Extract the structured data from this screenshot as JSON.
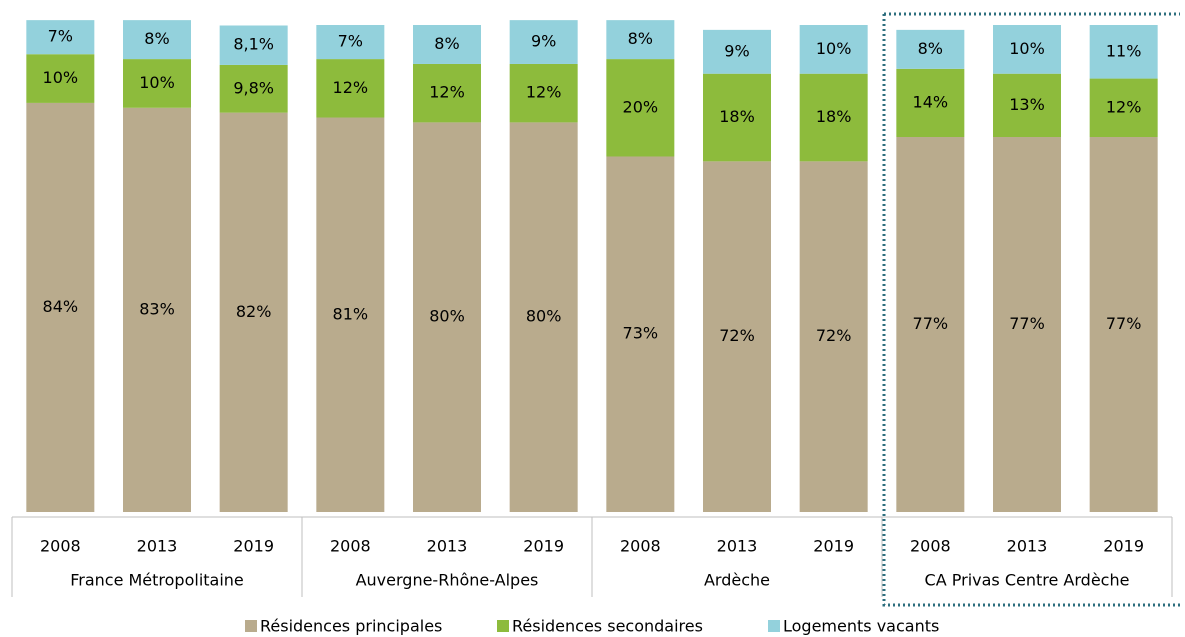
{
  "chart_data": {
    "type": "stacked_bar",
    "categories": [
      "2008",
      "2013",
      "2019",
      "2008",
      "2013",
      "2019",
      "2008",
      "2013",
      "2019",
      "2008",
      "2013",
      "2019"
    ],
    "groups": [
      "France Métropolitaine",
      "Auvergne-Rhône-Alpes",
      "Ardèche",
      "CA Privas Centre Ardèche"
    ],
    "series": [
      {
        "name": "Résidences principales",
        "color": "#b9ab8d",
        "values": [
          84,
          83,
          82,
          81,
          80,
          80,
          73,
          72,
          72,
          77,
          77,
          77
        ],
        "value_labels": [
          "84%",
          "83%",
          "82%",
          "81%",
          "80%",
          "80%",
          "73%",
          "72%",
          "72%",
          "77%",
          "77%",
          "77%"
        ]
      },
      {
        "name": "Résidences secondaires",
        "color": "#8dbb3c",
        "values": [
          10,
          10,
          9.8,
          12,
          12,
          12,
          20,
          18,
          18,
          14,
          13,
          12
        ],
        "value_labels": [
          "10%",
          "10%",
          "9,8%",
          "12%",
          "12%",
          "12%",
          "20%",
          "18%",
          "18%",
          "14%",
          "13%",
          "12%"
        ]
      },
      {
        "name": "Logements vacants",
        "color": "#93d1dc",
        "values": [
          7,
          8,
          8.1,
          7,
          8,
          9,
          8,
          9,
          10,
          8,
          10,
          11
        ],
        "value_labels": [
          "7%",
          "8%",
          "8,1%",
          "7%",
          "8%",
          "9%",
          "8%",
          "9%",
          "10%",
          "8%",
          "10%",
          "11%"
        ]
      }
    ],
    "ylim": [
      0,
      100
    ]
  }
}
